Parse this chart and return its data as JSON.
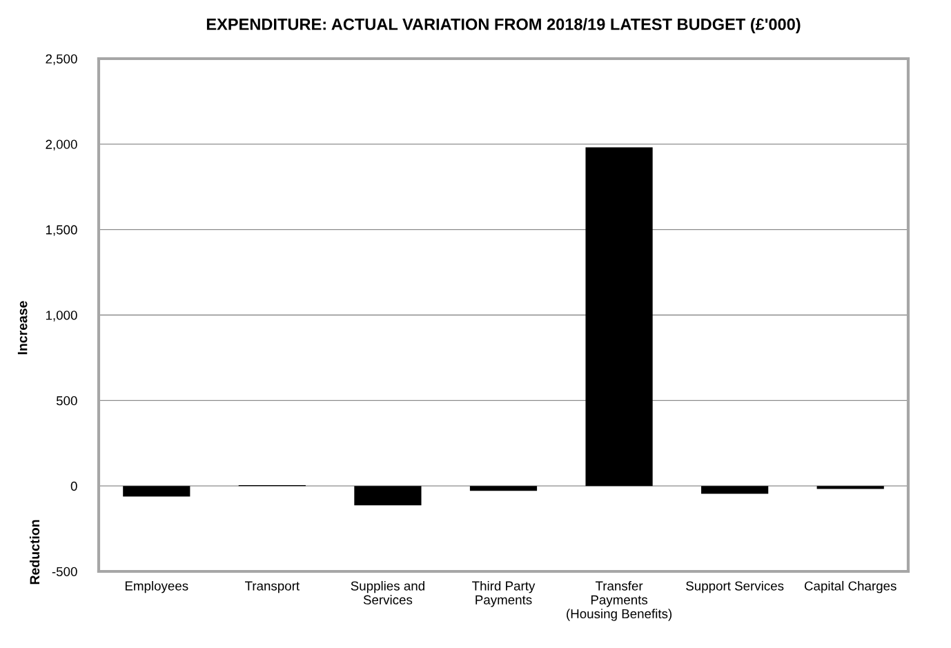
{
  "chart_data": {
    "type": "bar",
    "title": "EXPENDITURE: ACTUAL VARIATION FROM 2018/19 LATEST BUDGET (£'000)",
    "ylabel": "Increase",
    "annotations": [
      "Reduction"
    ],
    "categories": [
      "Employees",
      "Transport",
      "Supplies and\nServices",
      "Third Party\nPayments",
      "Transfer\nPayments\n(Housing Benefits)",
      "Support Services",
      "Capital Charges"
    ],
    "values": [
      -62,
      5,
      -113,
      -29,
      1981,
      -46,
      -18
    ],
    "color": "#000000",
    "ylim": [
      -500,
      2500
    ],
    "yticks": [
      {
        "value": -500,
        "label": "-500"
      },
      0,
      500,
      {
        "value": 1000,
        "label": "1,000"
      },
      {
        "value": 1500,
        "label": "1,500"
      },
      {
        "value": 2000,
        "label": "2,000"
      },
      {
        "value": 2500,
        "label": "2,500"
      }
    ],
    "grid": "y",
    "legend": false
  }
}
